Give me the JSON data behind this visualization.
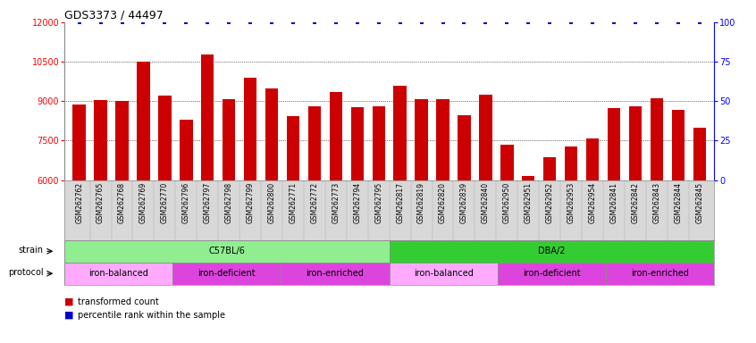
{
  "title": "GDS3373 / 44497",
  "samples": [
    "GSM262762",
    "GSM262765",
    "GSM262768",
    "GSM262769",
    "GSM262770",
    "GSM262796",
    "GSM262797",
    "GSM262798",
    "GSM262799",
    "GSM262800",
    "GSM262771",
    "GSM262772",
    "GSM262773",
    "GSM262794",
    "GSM262795",
    "GSM262817",
    "GSM262819",
    "GSM262820",
    "GSM262839",
    "GSM262840",
    "GSM262950",
    "GSM262951",
    "GSM262952",
    "GSM262953",
    "GSM262954",
    "GSM262841",
    "GSM262842",
    "GSM262843",
    "GSM262844",
    "GSM262845"
  ],
  "bar_values": [
    8870,
    9050,
    9010,
    10500,
    9200,
    8280,
    10780,
    9070,
    9890,
    9480,
    8430,
    8800,
    9350,
    8780,
    8820,
    9600,
    9070,
    9080,
    8470,
    9260,
    7330,
    6150,
    6860,
    7280,
    7590,
    8750,
    8800,
    9110,
    8680,
    8000
  ],
  "percentile_values": [
    100,
    100,
    100,
    100,
    100,
    100,
    100,
    100,
    100,
    100,
    100,
    100,
    100,
    100,
    100,
    100,
    100,
    100,
    100,
    100,
    100,
    100,
    100,
    100,
    100,
    100,
    100,
    100,
    100,
    100
  ],
  "bar_color": "#cc0000",
  "percentile_color": "#0000cc",
  "ylim": [
    6000,
    12000
  ],
  "yticks": [
    6000,
    7500,
    9000,
    10500,
    12000
  ],
  "right_yticks": [
    0,
    25,
    50,
    75,
    100
  ],
  "right_ylim": [
    0,
    100
  ],
  "strain_groups": [
    {
      "label": "C57BL/6",
      "start": 0,
      "end": 15,
      "color": "#90ee90"
    },
    {
      "label": "DBA/2",
      "start": 15,
      "end": 30,
      "color": "#33cc33"
    }
  ],
  "protocol_groups": [
    {
      "label": "iron-balanced",
      "start": 0,
      "end": 5,
      "color": "#ffaaff"
    },
    {
      "label": "iron-deficient",
      "start": 5,
      "end": 10,
      "color": "#dd44dd"
    },
    {
      "label": "iron-enriched",
      "start": 10,
      "end": 15,
      "color": "#dd44dd"
    },
    {
      "label": "iron-balanced",
      "start": 15,
      "end": 20,
      "color": "#ffaaff"
    },
    {
      "label": "iron-deficient",
      "start": 20,
      "end": 25,
      "color": "#dd44dd"
    },
    {
      "label": "iron-enriched",
      "start": 25,
      "end": 30,
      "color": "#dd44dd"
    }
  ],
  "legend_items": [
    {
      "label": "transformed count",
      "color": "#cc0000"
    },
    {
      "label": "percentile rank within the sample",
      "color": "#0000cc"
    }
  ],
  "bg_color": "#ffffff",
  "grid_color": "#000000",
  "tick_area_color": "#d8d8d8"
}
